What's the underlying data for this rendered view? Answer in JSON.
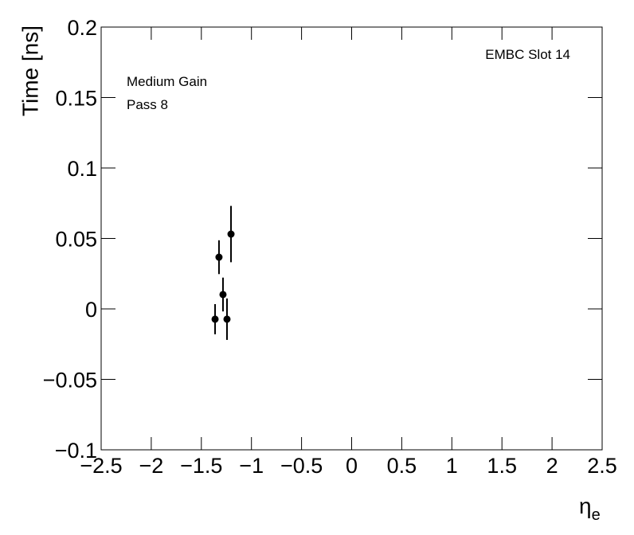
{
  "chart_data": {
    "type": "scatter",
    "ylabel": "Time [ns]",
    "xlabel": {
      "text": "η",
      "subscript": "e"
    },
    "annotations": [
      "EMBC Slot 14",
      "Medium Gain",
      "Pass 8"
    ],
    "x": [
      -1.363,
      -1.324,
      -1.284,
      -1.244,
      -1.204
    ],
    "series": [
      {
        "color": "#000000",
        "values": [
          -0.0073,
          0.0367,
          0.0102,
          -0.0073,
          0.0531
        ],
        "errors": [
          0.0107,
          0.012,
          0.012,
          0.0147,
          0.02
        ]
      }
    ],
    "xlim": [
      -2.5,
      2.5
    ],
    "xticks": [
      {
        "value": -2.5,
        "label": "−2.5"
      },
      {
        "value": -2,
        "label": "−2"
      },
      {
        "value": -1.5,
        "label": "−1.5"
      },
      {
        "value": -1,
        "label": "−1"
      },
      {
        "value": -0.5,
        "label": "−0.5"
      },
      0,
      0.5,
      1,
      1.5,
      2,
      2.5
    ],
    "ylim": [
      -0.1,
      0.2
    ],
    "yticks": [
      {
        "value": -0.1,
        "label": "−0.1"
      },
      {
        "value": -0.05,
        "label": "−0.05"
      },
      0,
      0.05,
      0.1,
      0.15,
      0.2
    ]
  }
}
